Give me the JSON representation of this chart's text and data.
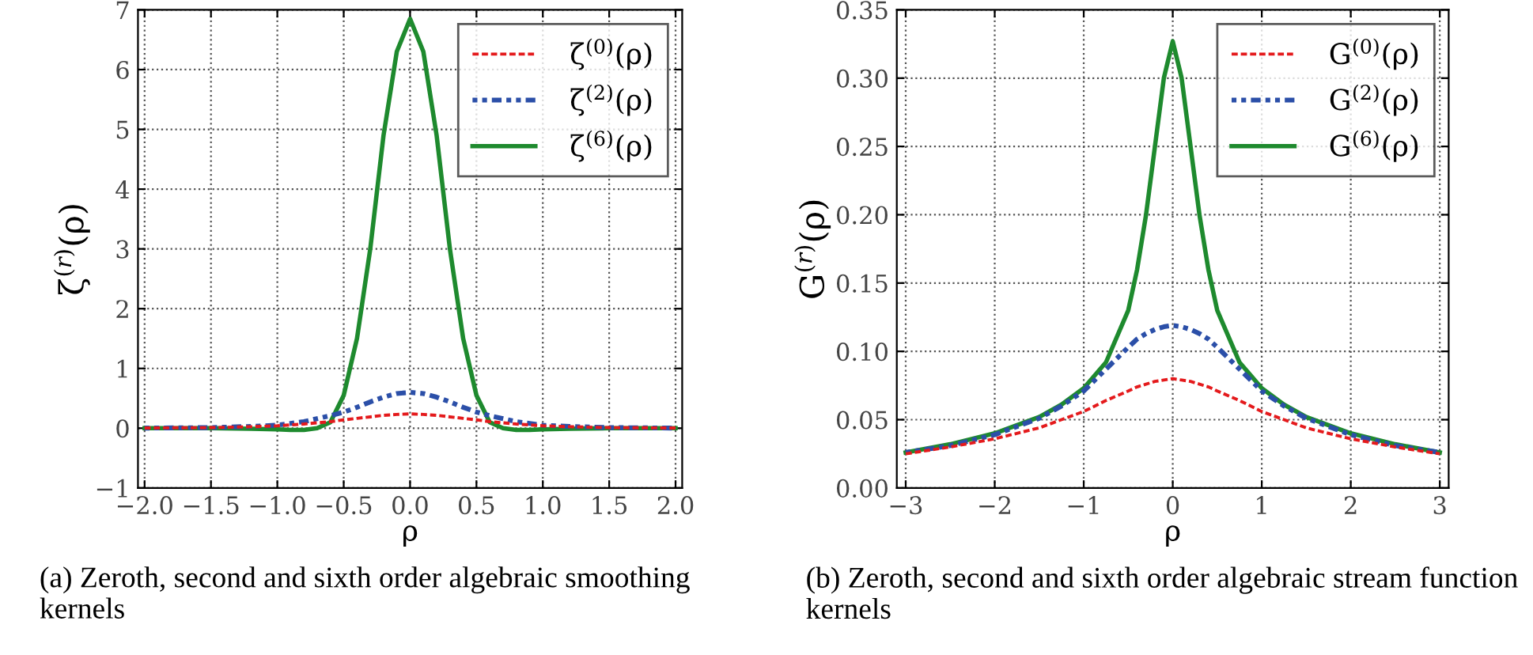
{
  "chart_data": [
    {
      "type": "line",
      "xlabel": "ρ",
      "ylabel": "ζ$^{(r)}$(ρ)",
      "xlim": [
        -2.05,
        2.05
      ],
      "ylim": [
        -1,
        7
      ],
      "xticks": [
        {
          "value": -2,
          "label": "−2.0"
        },
        -1.5,
        {
          "value": -1,
          "label": "−1.0"
        },
        -0.5,
        {
          "value": 0,
          "label": "0.0"
        },
        0.5,
        {
          "value": 1,
          "label": "1.0"
        },
        1.5,
        {
          "value": 2,
          "label": "2.0"
        }
      ],
      "yticks": [
        -1,
        0,
        1,
        2,
        3,
        4,
        5,
        6,
        7
      ],
      "grid": true,
      "legend": "top right",
      "annotations": [
        "(a) Zeroth, second and sixth order algebraic smoothing kernels"
      ],
      "x": [
        -2.0,
        -1.5,
        -1.2,
        -1.0,
        -0.9,
        -0.8,
        -0.7,
        -0.6,
        -0.5,
        -0.4,
        -0.3,
        -0.2,
        -0.1,
        0.0,
        0.1,
        0.2,
        0.3,
        0.4,
        0.5,
        0.6,
        0.7,
        0.8,
        0.9,
        1.0,
        1.2,
        1.5,
        2.0
      ],
      "series": [
        {
          "name": "ζ$^{(0)}$(ρ)",
          "color": "#e41a1c",
          "line_style": "dashed",
          "values": [
            0.004,
            0.01,
            0.025,
            0.04,
            0.055,
            0.07,
            0.09,
            0.11,
            0.14,
            0.165,
            0.19,
            0.215,
            0.23,
            0.24,
            0.23,
            0.215,
            0.19,
            0.165,
            0.14,
            0.11,
            0.09,
            0.07,
            0.055,
            0.04,
            0.025,
            0.01,
            0.004
          ]
        },
        {
          "name": "ζ$^{(2)}$(ρ)",
          "color": "#2b4fa8",
          "line_style": "dotted",
          "values": [
            0.002,
            0.01,
            0.03,
            0.05,
            0.08,
            0.11,
            0.16,
            0.21,
            0.27,
            0.35,
            0.44,
            0.52,
            0.58,
            0.6,
            0.58,
            0.52,
            0.44,
            0.35,
            0.27,
            0.21,
            0.16,
            0.11,
            0.08,
            0.05,
            0.03,
            0.01,
            0.002
          ]
        },
        {
          "name": "ζ$^{(6)}$(ρ)",
          "color": "#1e8a2e",
          "line_style": "solid",
          "values": [
            0.0,
            0.0,
            -0.01,
            -0.02,
            -0.03,
            -0.03,
            0.0,
            0.1,
            0.55,
            1.5,
            3.0,
            4.9,
            6.3,
            6.85,
            6.3,
            4.9,
            3.0,
            1.5,
            0.55,
            0.1,
            0.0,
            -0.03,
            -0.03,
            -0.02,
            -0.01,
            0.0,
            0.0
          ]
        }
      ]
    },
    {
      "type": "line",
      "xlabel": "ρ",
      "ylabel": "G$^{(r)}$(ρ)",
      "xlim": [
        -3.1,
        3.1
      ],
      "ylim": [
        0,
        0.35
      ],
      "xticks": [
        -3,
        -2,
        -1,
        0,
        1,
        2,
        3
      ],
      "yticks": [
        {
          "value": 0,
          "label": "0.00"
        },
        0.05,
        {
          "value": 0.1,
          "label": "0.10"
        },
        0.15,
        {
          "value": 0.2,
          "label": "0.20"
        },
        0.25,
        {
          "value": 0.3,
          "label": "0.30"
        },
        0.35
      ],
      "grid": true,
      "legend": "top right",
      "annotations": [
        "(b) Zeroth, second and sixth order algebraic stream function kernels"
      ],
      "x": [
        -3.0,
        -2.5,
        -2.0,
        -1.5,
        -1.25,
        -1.0,
        -0.75,
        -0.5,
        -0.4,
        -0.3,
        -0.2,
        -0.1,
        0.0,
        0.1,
        0.2,
        0.3,
        0.4,
        0.5,
        0.75,
        1.0,
        1.25,
        1.5,
        2.0,
        2.5,
        3.0
      ],
      "series": [
        {
          "name": "G$^{(0)}$(ρ)",
          "color": "#e41a1c",
          "line_style": "dashed",
          "values": [
            0.025,
            0.03,
            0.036,
            0.044,
            0.05,
            0.056,
            0.064,
            0.071,
            0.074,
            0.076,
            0.078,
            0.079,
            0.08,
            0.079,
            0.078,
            0.076,
            0.074,
            0.071,
            0.064,
            0.056,
            0.05,
            0.044,
            0.036,
            0.03,
            0.025
          ]
        },
        {
          "name": "G$^{(2)}$(ρ)",
          "color": "#2b4fa8",
          "line_style": "dotted",
          "values": [
            0.026,
            0.031,
            0.039,
            0.051,
            0.06,
            0.071,
            0.087,
            0.103,
            0.109,
            0.113,
            0.116,
            0.118,
            0.119,
            0.118,
            0.116,
            0.113,
            0.109,
            0.103,
            0.087,
            0.071,
            0.06,
            0.051,
            0.039,
            0.031,
            0.026
          ]
        },
        {
          "name": "G$^{(6)}$(ρ)",
          "color": "#1e8a2e",
          "line_style": "solid",
          "values": [
            0.026,
            0.032,
            0.04,
            0.052,
            0.061,
            0.073,
            0.092,
            0.13,
            0.16,
            0.2,
            0.25,
            0.3,
            0.327,
            0.3,
            0.25,
            0.2,
            0.16,
            0.13,
            0.092,
            0.073,
            0.061,
            0.052,
            0.04,
            0.032,
            0.026
          ]
        }
      ]
    }
  ]
}
